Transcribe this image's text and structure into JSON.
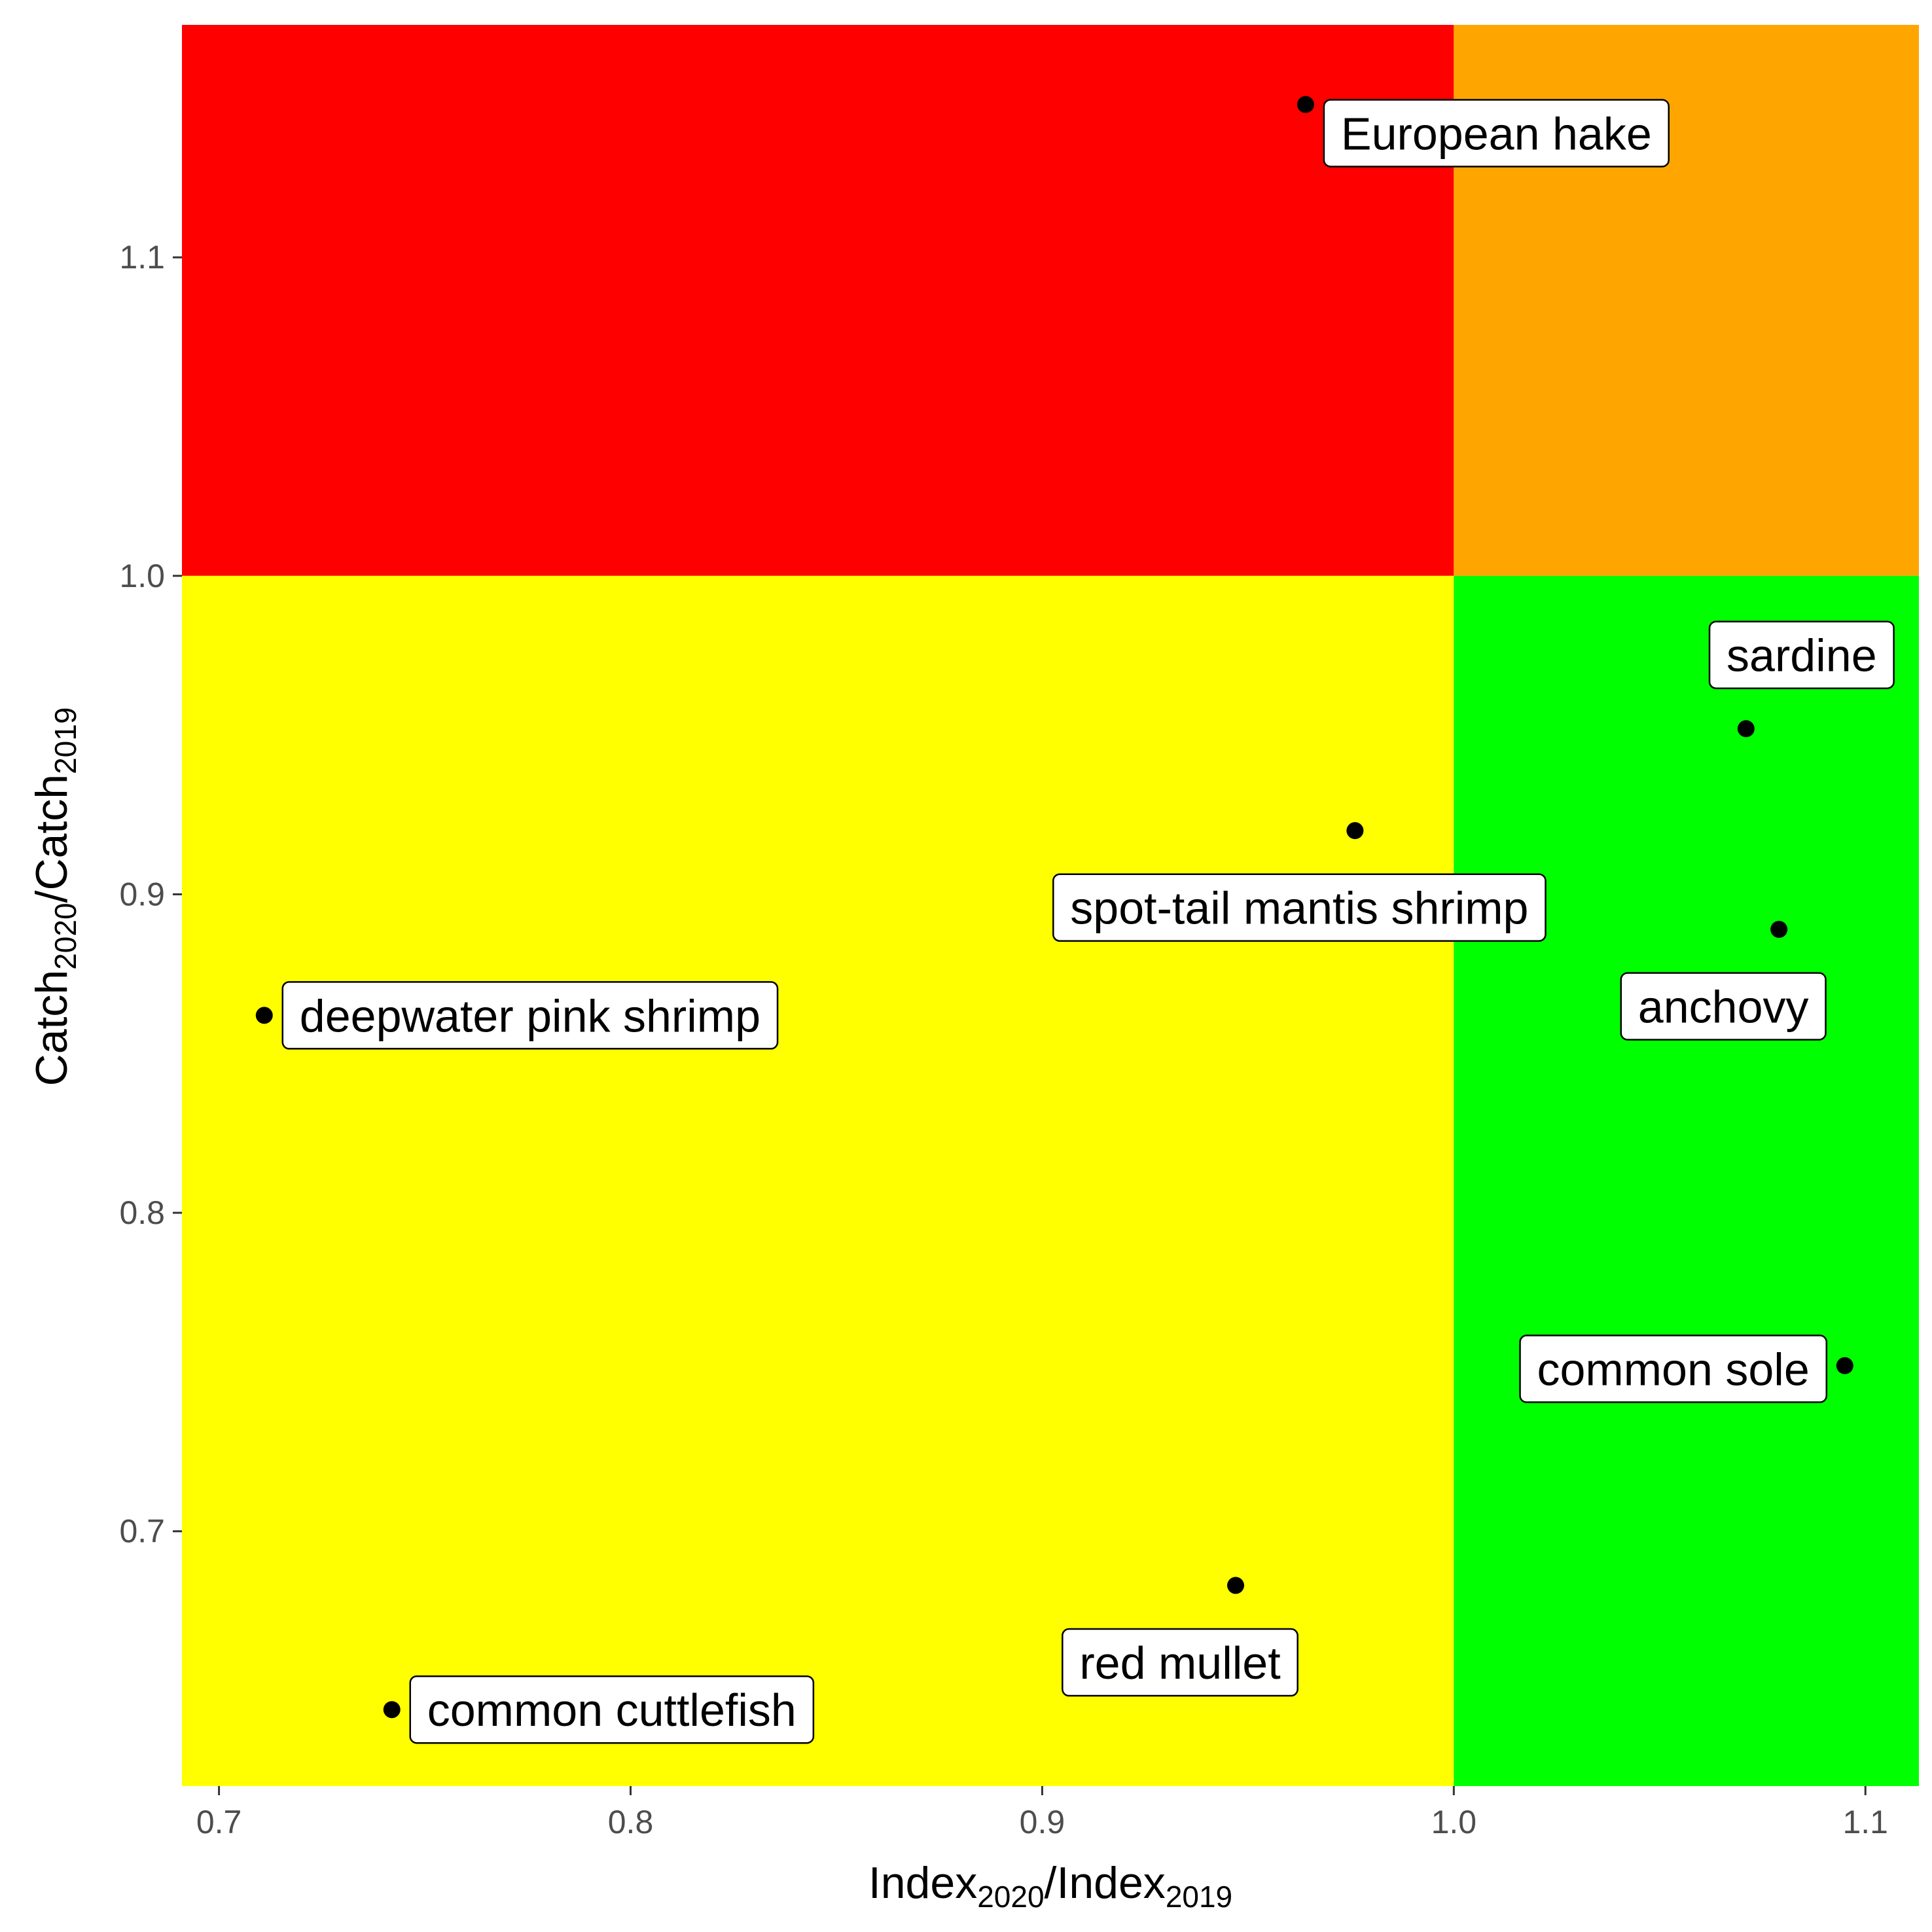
{
  "chart_data": {
    "type": "scatter",
    "xlabel": {
      "base1": "Index",
      "sub1": "2020",
      "sep": "/",
      "base2": "Index",
      "sub2": "2019"
    },
    "ylabel": {
      "base1": "Catch",
      "sub1": "2020",
      "sep": "/",
      "base2": "Catch",
      "sub2": "2019"
    },
    "xlim": [
      0.691,
      1.113
    ],
    "ylim": [
      0.62,
      1.173
    ],
    "x_ticks": [
      0.7,
      0.8,
      0.9,
      1.0,
      1.1
    ],
    "x_tick_labels": [
      "0.7",
      "0.8",
      "0.9",
      "1.0",
      "1.1"
    ],
    "y_ticks": [
      0.7,
      0.8,
      0.9,
      1.0,
      1.1
    ],
    "y_tick_labels": [
      "0.7",
      "0.8",
      "0.9",
      "1.0",
      "1.1"
    ],
    "grid": false,
    "quadrant_split": {
      "x": 1.0,
      "y": 1.0
    },
    "quadrants": [
      {
        "id": "top-left",
        "x": [
          0.691,
          1.0
        ],
        "y": [
          1.0,
          1.173
        ],
        "color": "#ff0000"
      },
      {
        "id": "top-right",
        "x": [
          1.0,
          1.113
        ],
        "y": [
          1.0,
          1.173
        ],
        "color": "#ffa500"
      },
      {
        "id": "bottom-left",
        "x": [
          0.691,
          1.0
        ],
        "y": [
          0.62,
          1.0
        ],
        "color": "#ffff00"
      },
      {
        "id": "bottom-right",
        "x": [
          1.0,
          1.113
        ],
        "y": [
          0.62,
          1.0
        ],
        "color": "#00ff00"
      }
    ],
    "points": [
      {
        "label": "European hake",
        "x": 0.964,
        "y": 1.148,
        "label_side": "right",
        "label_dy": -0.009
      },
      {
        "label": "sardine",
        "x": 1.071,
        "y": 0.952,
        "label_side": "above",
        "label_dy": 0.017
      },
      {
        "label": "spot-tail mantis shrimp",
        "x": 0.976,
        "y": 0.92,
        "label_side": "below",
        "label_dy": -0.018
      },
      {
        "label": "anchovy",
        "x": 1.079,
        "y": 0.889,
        "label_side": "below",
        "label_dy": -0.018
      },
      {
        "label": "deepwater pink shrimp",
        "x": 0.711,
        "y": 0.862,
        "label_side": "right",
        "label_dy": 0.0
      },
      {
        "label": "common sole",
        "x": 1.095,
        "y": 0.752,
        "label_side": "left",
        "label_dy": -0.001
      },
      {
        "label": "red mullet",
        "x": 0.947,
        "y": 0.683,
        "label_side": "below",
        "label_dy": -0.018
      },
      {
        "label": "common cuttlefish",
        "x": 0.742,
        "y": 0.644,
        "label_side": "right",
        "label_dy": 0.0
      }
    ]
  }
}
